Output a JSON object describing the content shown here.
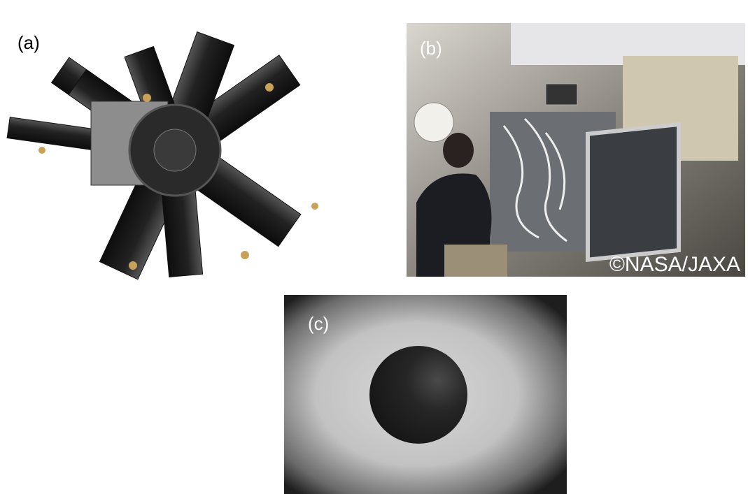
{
  "panels": [
    {
      "label": "(a)"
    },
    {
      "label": "(b)",
      "credit": "©NASA/JAXA"
    },
    {
      "label": "(c)"
    }
  ]
}
